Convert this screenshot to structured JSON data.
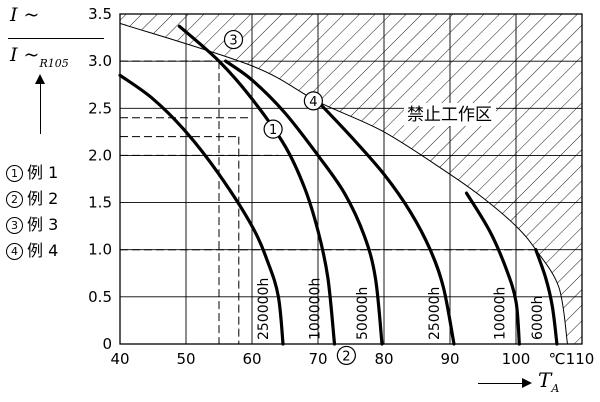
{
  "ylabel": {
    "numerator": "I ~",
    "denominator": "I ~",
    "denominator_sub": "R105"
  },
  "xlabel": {
    "text": "T",
    "sub": "A"
  },
  "legend": [
    {
      "marker": "1",
      "text": "例 1"
    },
    {
      "marker": "2",
      "text": "例 2"
    },
    {
      "marker": "3",
      "text": "例 3"
    },
    {
      "marker": "4",
      "text": "例 4"
    }
  ],
  "chart_data": {
    "type": "line",
    "title": "",
    "xlim": [
      40,
      110
    ],
    "ylim": [
      0,
      3.5
    ],
    "x_ticks": [
      "40",
      "50",
      "60",
      "70",
      "80",
      "90",
      "100",
      "110"
    ],
    "y_ticks": [
      "0",
      "0.5",
      "1.0",
      "1.5",
      "2.0",
      "2.5",
      "3.0",
      "3.5"
    ],
    "x_unit": "℃",
    "grid": true,
    "series": [
      {
        "name": "250000h",
        "points": [
          [
            40,
            2.85
          ],
          [
            45,
            2.6
          ],
          [
            50,
            2.25
          ],
          [
            55,
            1.8
          ],
          [
            60,
            1.25
          ],
          [
            62.5,
            0.85
          ],
          [
            64,
            0.5
          ],
          [
            64.7,
            0
          ]
        ]
      },
      {
        "name": "100000h",
        "points": [
          [
            49,
            3.37
          ],
          [
            55,
            3.0
          ],
          [
            60,
            2.6
          ],
          [
            65,
            2.1
          ],
          [
            68,
            1.65
          ],
          [
            70,
            1.2
          ],
          [
            71.5,
            0.7
          ],
          [
            72.5,
            0
          ]
        ]
      },
      {
        "name": "50000h",
        "points": [
          [
            56,
            3.0
          ],
          [
            60,
            2.8
          ],
          [
            65,
            2.45
          ],
          [
            70,
            2.0
          ],
          [
            74,
            1.6
          ],
          [
            77,
            1.15
          ],
          [
            78.7,
            0.7
          ],
          [
            79.7,
            0
          ]
        ]
      },
      {
        "name": "25000h",
        "points": [
          [
            70,
            2.57
          ],
          [
            75,
            2.2
          ],
          [
            80,
            1.8
          ],
          [
            84,
            1.4
          ],
          [
            87,
            1.0
          ],
          [
            89,
            0.6
          ],
          [
            90.6,
            0
          ]
        ]
      },
      {
        "name": "10000h",
        "points": [
          [
            92.5,
            1.6
          ],
          [
            96,
            1.2
          ],
          [
            98.5,
            0.8
          ],
          [
            100,
            0.45
          ],
          [
            100.5,
            0
          ]
        ]
      },
      {
        "name": "6000h",
        "points": [
          [
            103,
            1.0
          ],
          [
            104.5,
            0.7
          ],
          [
            105.5,
            0.4
          ],
          [
            106.2,
            0
          ]
        ]
      }
    ],
    "forbidden_region": {
      "label": "禁止工作区",
      "boundary": [
        [
          40,
          3.4
        ],
        [
          60,
          2.95
        ],
        [
          70,
          2.57
        ],
        [
          80,
          2.25
        ],
        [
          90,
          1.8
        ],
        [
          95,
          1.55
        ],
        [
          100,
          1.25
        ],
        [
          103,
          1.0
        ],
        [
          106.5,
          0.6
        ],
        [
          107.8,
          0
        ]
      ]
    },
    "dashed_guides": [
      {
        "from": [
          40,
          3.0
        ],
        "to": [
          55,
          3.0
        ]
      },
      {
        "from": [
          55,
          3.0
        ],
        "to": [
          55,
          0
        ]
      },
      {
        "from": [
          40,
          2.4
        ],
        "to": [
          60,
          2.4
        ]
      },
      {
        "from": [
          40,
          2.2
        ],
        "to": [
          58,
          2.2
        ]
      },
      {
        "from": [
          58,
          2.2
        ],
        "to": [
          58,
          0
        ]
      },
      {
        "from": [
          40,
          2.0
        ],
        "to": [
          64,
          2.0
        ]
      },
      {
        "from": [
          40,
          1.0
        ],
        "to": [
          103,
          1.0
        ]
      }
    ],
    "example_markers": [
      {
        "label": "3",
        "x": 57.2,
        "y": 3.25
      },
      {
        "label": "4",
        "x": 69.3,
        "y": 2.6
      },
      {
        "label": "1",
        "x": 63.2,
        "y": 2.3
      },
      {
        "label": "2",
        "x": 74.3,
        "y": -0.1
      }
    ]
  }
}
